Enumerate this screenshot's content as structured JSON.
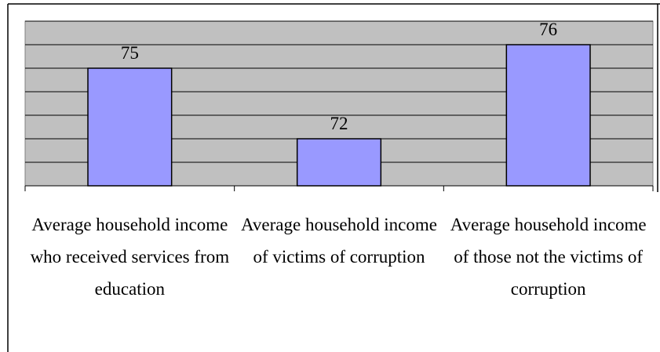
{
  "chart_data": {
    "type": "bar",
    "categories": [
      "Average household income who received services from education",
      "Average household income of victims of corruption",
      "Average household income of those not the victims of corruption"
    ],
    "values": [
      75,
      72,
      76
    ],
    "color": "#9999ff",
    "ylim": [
      70,
      77
    ],
    "yticks": [
      70,
      71,
      72,
      73,
      74,
      75,
      76,
      77
    ],
    "grid": true
  }
}
